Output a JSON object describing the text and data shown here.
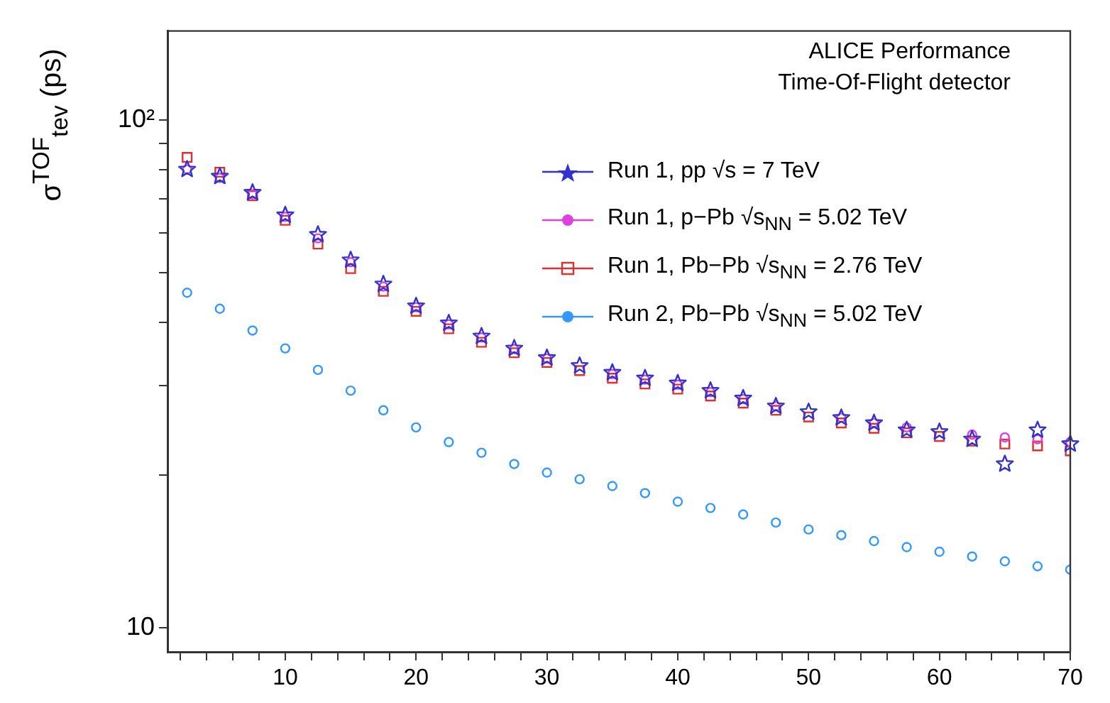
{
  "chart_data": {
    "type": "scatter",
    "ylabel": "σ$^{TOF}$$_{tev}$ (ps)",
    "annotations": [
      "ALICE Performance",
      "Time-Of-Flight detector"
    ],
    "log": "y",
    "legend": "top right",
    "x": [
      2.5,
      5,
      7.5,
      10,
      12.5,
      15,
      17.5,
      20,
      22.5,
      25,
      27.5,
      30,
      32.5,
      35,
      37.5,
      40,
      42.5,
      45,
      47.5,
      50,
      52.5,
      55,
      57.5,
      60,
      62.5,
      65,
      67.5,
      70
    ],
    "xlim": [
      1,
      70
    ],
    "xticks": [
      {
        "value": 2,
        "label": null
      },
      {
        "value": 4,
        "label": null
      },
      {
        "value": 6,
        "label": null
      },
      {
        "value": 8,
        "label": null
      },
      10,
      {
        "value": 12,
        "label": null
      },
      {
        "value": 14,
        "label": null
      },
      {
        "value": 16,
        "label": null
      },
      {
        "value": 18,
        "label": null
      },
      20,
      {
        "value": 22,
        "label": null
      },
      {
        "value": 24,
        "label": null
      },
      {
        "value": 26,
        "label": null
      },
      {
        "value": 28,
        "label": null
      },
      30,
      {
        "value": 32,
        "label": null
      },
      {
        "value": 34,
        "label": null
      },
      {
        "value": 36,
        "label": null
      },
      {
        "value": 38,
        "label": null
      },
      40,
      {
        "value": 42,
        "label": null
      },
      {
        "value": 44,
        "label": null
      },
      {
        "value": 46,
        "label": null
      },
      {
        "value": 48,
        "label": null
      },
      50,
      {
        "value": 52,
        "label": null
      },
      {
        "value": 54,
        "label": null
      },
      {
        "value": 56,
        "label": null
      },
      {
        "value": 58,
        "label": null
      },
      60,
      {
        "value": 62,
        "label": null
      },
      {
        "value": 64,
        "label": null
      },
      {
        "value": 66,
        "label": null
      },
      {
        "value": 68,
        "label": null
      },
      70
    ],
    "ylim": [
      8.95,
      150
    ],
    "yticks": [
      10,
      {
        "value": 20,
        "label": null
      },
      {
        "value": 30,
        "label": null
      },
      {
        "value": 40,
        "label": null
      },
      {
        "value": 50,
        "label": null
      },
      {
        "value": 60,
        "label": null
      },
      {
        "value": 70,
        "label": null
      },
      {
        "value": 80,
        "label": null
      },
      {
        "value": 90,
        "label": null
      },
      {
        "value": 100,
        "label": "10²"
      }
    ],
    "series": [
      {
        "name": "Run 1, pp √s = 7 TeV",
        "color": "#3333cc",
        "marker": "star",
        "values": [
          80,
          77.5,
          72,
          65,
          59.5,
          53,
          47.5,
          43,
          39.8,
          37.5,
          35.5,
          34,
          32.8,
          31.8,
          31,
          30.3,
          29.3,
          28.3,
          27.3,
          26.6,
          25.9,
          25.3,
          24.5,
          24.3,
          23.5,
          21,
          24.5,
          23
        ]
      },
      {
        "name": "Run 1, p−Pb √s$_{NN}$ = 5.02 TeV",
        "color": "#e040e0",
        "marker": "circle",
        "values": [
          80,
          77,
          71.5,
          64.5,
          58.5,
          52.5,
          47,
          42.8,
          39.6,
          37.3,
          35.4,
          33.9,
          null,
          31.6,
          30.8,
          30.1,
          29.1,
          28.2,
          27.3,
          null,
          25.9,
          25.3,
          24.8,
          null,
          24,
          23.7,
          23.5,
          23.2
        ]
      },
      {
        "name": "Run 1, Pb−Pb √s$_{NN}$ = 2.76 TeV",
        "color": "#e03030",
        "marker": "square",
        "values": [
          84.5,
          79,
          71,
          63.5,
          57,
          51,
          46,
          42,
          38.8,
          36.5,
          34.8,
          33.3,
          32.1,
          31,
          30.2,
          29.5,
          28.6,
          27.7,
          26.8,
          26,
          25.3,
          24.7,
          24.2,
          23.8,
          23.3,
          23,
          22.8,
          22.3
        ]
      },
      {
        "name": "Run 2, Pb−Pb √s$_{NN}$ = 5.02 TeV",
        "color": "#3399ff",
        "marker": "circle",
        "values": [
          45.7,
          42.5,
          38.5,
          35.5,
          32.2,
          29.3,
          26.8,
          24.8,
          23.2,
          22.1,
          21,
          20.2,
          19.6,
          19,
          18.4,
          17.7,
          17.2,
          16.7,
          16.1,
          15.6,
          15.2,
          14.8,
          14.4,
          14.1,
          13.8,
          13.5,
          13.2,
          13
        ]
      }
    ]
  }
}
